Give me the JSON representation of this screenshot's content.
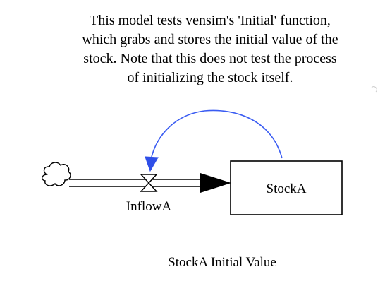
{
  "comment": {
    "lines": [
      "This model tests vensim's 'Initial' function,",
      "which grabs and stores the initial value of the",
      "stock. Note that this does not test the process",
      "of initializing the stock itself."
    ]
  },
  "stock": {
    "label": "StockA"
  },
  "flow": {
    "label": "InflowA"
  },
  "auxiliary": {
    "label": "StockA Initial Value"
  },
  "colors": {
    "link_arrow": "#3a5cf2",
    "outline": "#000000",
    "background": "#ffffff"
  },
  "icons": {
    "source": "cloud-icon",
    "valve": "valve-icon",
    "flow_arrowhead": "arrowhead-icon"
  }
}
